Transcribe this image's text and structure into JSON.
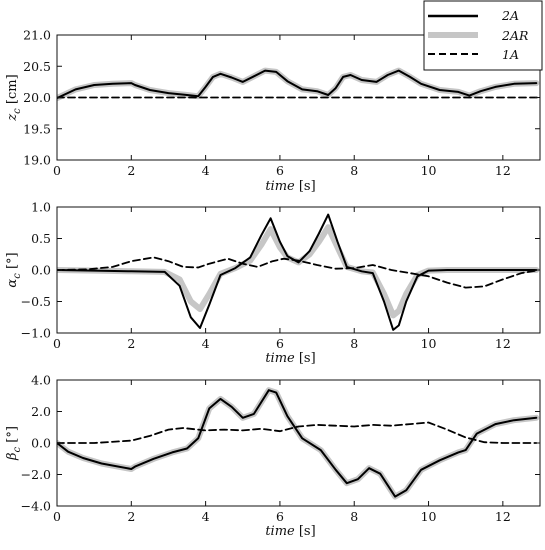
{
  "legend": {
    "entries": [
      {
        "label": "2A",
        "style": "solid-black"
      },
      {
        "label": "2AR",
        "style": "thick-gray"
      },
      {
        "label": "1A",
        "style": "dashed-black"
      }
    ],
    "placement": "top-right"
  },
  "colors": {
    "black": "#000000",
    "gray": "#c6c6c6"
  },
  "chart_data": [
    {
      "type": "line",
      "xlabel": "time [s]",
      "ylabel": "z_c [cm]",
      "xlim": [
        0,
        13
      ],
      "ylim": [
        19.0,
        21.0
      ],
      "xticks": [
        "0",
        "2",
        "4",
        "6",
        "8",
        "10",
        "12"
      ],
      "yticks": [
        "19.0",
        "19.5",
        "20.0",
        "20.5",
        "21.0"
      ],
      "grid": false,
      "series": [
        {
          "name": "2A",
          "x": [
            0,
            0.5,
            1,
            1.5,
            2,
            2.1,
            2.5,
            3,
            3.5,
            3.8,
            4,
            4.2,
            4.4,
            4.7,
            5,
            5.3,
            5.6,
            5.9,
            6.2,
            6.6,
            7,
            7.3,
            7.5,
            7.7,
            7.9,
            8.2,
            8.6,
            8.9,
            9.2,
            9.5,
            9.8,
            10.3,
            10.8,
            11.1,
            11.4,
            11.8,
            12.3,
            12.9
          ],
          "y": [
            19.99,
            20.13,
            20.2,
            20.22,
            20.23,
            20.2,
            20.12,
            20.07,
            20.04,
            20.02,
            20.17,
            20.33,
            20.38,
            20.32,
            20.25,
            20.34,
            20.43,
            20.41,
            20.26,
            20.13,
            20.1,
            20.04,
            20.15,
            20.33,
            20.36,
            20.28,
            20.25,
            20.36,
            20.43,
            20.33,
            20.22,
            20.12,
            20.09,
            20.03,
            20.1,
            20.17,
            20.22,
            20.23
          ]
        },
        {
          "name": "2AR",
          "x": [
            0,
            0.5,
            1,
            1.5,
            2,
            2.1,
            2.5,
            3,
            3.5,
            3.8,
            4,
            4.2,
            4.4,
            4.7,
            5,
            5.3,
            5.6,
            5.9,
            6.2,
            6.6,
            7,
            7.3,
            7.5,
            7.7,
            7.9,
            8.2,
            8.6,
            8.9,
            9.2,
            9.5,
            9.8,
            10.3,
            10.8,
            11.1,
            11.4,
            11.8,
            12.3,
            12.9
          ],
          "y": [
            19.99,
            20.13,
            20.2,
            20.22,
            20.23,
            20.2,
            20.12,
            20.07,
            20.04,
            20.02,
            20.17,
            20.33,
            20.38,
            20.32,
            20.25,
            20.34,
            20.43,
            20.41,
            20.26,
            20.13,
            20.1,
            20.04,
            20.15,
            20.33,
            20.36,
            20.28,
            20.25,
            20.36,
            20.43,
            20.33,
            20.22,
            20.12,
            20.09,
            20.03,
            20.1,
            20.17,
            20.22,
            20.23
          ]
        },
        {
          "name": "1A",
          "x": [
            0,
            13
          ],
          "y": [
            20.0,
            20.0
          ]
        }
      ]
    },
    {
      "type": "line",
      "xlabel": "time [s]",
      "ylabel": "α_c [°]",
      "xlim": [
        0,
        13
      ],
      "ylim": [
        -1.0,
        1.0
      ],
      "xticks": [
        "0",
        "2",
        "4",
        "6",
        "8",
        "10",
        "12"
      ],
      "yticks": [
        "−1.0",
        "−0.5",
        "0.0",
        "0.5",
        "1.0"
      ],
      "grid": false,
      "series": [
        {
          "name": "2A",
          "x": [
            0,
            1,
            2,
            2.9,
            3.3,
            3.6,
            3.85,
            4.1,
            4.4,
            4.8,
            5.2,
            5.5,
            5.75,
            6,
            6.2,
            6.5,
            6.8,
            7.05,
            7.3,
            7.55,
            7.8,
            8.2,
            8.5,
            8.8,
            9.05,
            9.2,
            9.4,
            9.7,
            10,
            10.5,
            11,
            12,
            12.9
          ],
          "y": [
            0,
            -0.01,
            -0.02,
            -0.03,
            -0.25,
            -0.75,
            -0.92,
            -0.55,
            -0.08,
            0.03,
            0.2,
            0.55,
            0.82,
            0.45,
            0.22,
            0.12,
            0.3,
            0.58,
            0.88,
            0.45,
            0.05,
            -0.02,
            -0.05,
            -0.5,
            -0.95,
            -0.88,
            -0.5,
            -0.1,
            -0.01,
            0,
            0,
            0,
            0
          ]
        },
        {
          "name": "2AR",
          "x": [
            0,
            1,
            2,
            2.9,
            3.3,
            3.6,
            3.85,
            4.1,
            4.4,
            4.8,
            5.2,
            5.5,
            5.75,
            6,
            6.2,
            6.5,
            6.8,
            7.05,
            7.3,
            7.55,
            7.8,
            8.2,
            8.5,
            8.8,
            9.05,
            9.2,
            9.4,
            9.7,
            10,
            10.5,
            11,
            12,
            12.9
          ],
          "y": [
            0,
            -0.01,
            -0.02,
            -0.03,
            -0.15,
            -0.5,
            -0.62,
            -0.38,
            -0.06,
            0.03,
            0.15,
            0.4,
            0.65,
            0.36,
            0.2,
            0.12,
            0.25,
            0.45,
            0.68,
            0.36,
            0.05,
            -0.02,
            -0.04,
            -0.38,
            -0.72,
            -0.65,
            -0.38,
            -0.08,
            -0.01,
            0,
            0,
            0,
            0
          ]
        },
        {
          "name": "1A",
          "x": [
            0,
            0.8,
            1.5,
            2,
            2.6,
            3,
            3.4,
            3.8,
            4.1,
            4.6,
            5.0,
            5.4,
            5.8,
            6.1,
            6.5,
            7,
            7.5,
            8,
            8.5,
            9,
            9.5,
            10,
            10.5,
            11,
            11.5,
            12,
            12.5,
            12.9
          ],
          "y": [
            0,
            0.01,
            0.05,
            0.14,
            0.2,
            0.14,
            0.05,
            0.04,
            0.1,
            0.18,
            0.1,
            0.05,
            0.14,
            0.18,
            0.15,
            0.08,
            0.02,
            0.03,
            0.08,
            0.0,
            -0.05,
            -0.1,
            -0.2,
            -0.28,
            -0.26,
            -0.15,
            -0.05,
            -0.01
          ]
        }
      ]
    },
    {
      "type": "line",
      "xlabel": "time [s]",
      "ylabel": "β_c [°]",
      "xlim": [
        0,
        13
      ],
      "ylim": [
        -4.0,
        4.0
      ],
      "xticks": [
        "0",
        "2",
        "4",
        "6",
        "8",
        "10",
        "12"
      ],
      "yticks": [
        "−4.0",
        "−2.0",
        "0.0",
        "2.0",
        "4.0"
      ],
      "grid": false,
      "series": [
        {
          "name": "2A",
          "x": [
            0,
            0.3,
            0.7,
            1.2,
            2,
            2.1,
            2.6,
            3.1,
            3.5,
            3.8,
            4.1,
            4.4,
            4.7,
            5,
            5.3,
            5.7,
            5.9,
            6.2,
            6.6,
            7.1,
            7.5,
            7.8,
            8.1,
            8.4,
            8.7,
            9.1,
            9.4,
            9.8,
            10.3,
            10.8,
            11,
            11.3,
            11.8,
            12.3,
            12.9
          ],
          "y": [
            0,
            -0.55,
            -0.95,
            -1.3,
            -1.65,
            -1.5,
            -1.0,
            -0.6,
            -0.35,
            0.3,
            2.2,
            2.8,
            2.3,
            1.6,
            1.85,
            3.35,
            3.2,
            1.7,
            0.3,
            -0.45,
            -1.7,
            -2.55,
            -2.3,
            -1.6,
            -1.95,
            -3.4,
            -3.0,
            -1.7,
            -1.1,
            -0.6,
            -0.45,
            0.6,
            1.2,
            1.45,
            1.6
          ]
        },
        {
          "name": "2AR",
          "x": [
            0,
            0.3,
            0.7,
            1.2,
            2,
            2.1,
            2.6,
            3.1,
            3.5,
            3.8,
            4.1,
            4.4,
            4.7,
            5,
            5.3,
            5.7,
            5.9,
            6.2,
            6.6,
            7.1,
            7.5,
            7.8,
            8.1,
            8.4,
            8.7,
            9.1,
            9.4,
            9.8,
            10.3,
            10.8,
            11,
            11.3,
            11.8,
            12.3,
            12.9
          ],
          "y": [
            0,
            -0.55,
            -0.95,
            -1.3,
            -1.65,
            -1.5,
            -1.0,
            -0.6,
            -0.35,
            0.3,
            2.2,
            2.8,
            2.3,
            1.6,
            1.85,
            3.35,
            3.2,
            1.7,
            0.3,
            -0.45,
            -1.7,
            -2.55,
            -2.3,
            -1.6,
            -1.95,
            -3.4,
            -3.0,
            -1.7,
            -1.1,
            -0.6,
            -0.45,
            0.6,
            1.2,
            1.45,
            1.6
          ]
        },
        {
          "name": "1A",
          "x": [
            0,
            1,
            2,
            2.5,
            3,
            3.4,
            4,
            4.5,
            5,
            5.5,
            6,
            6.5,
            7,
            7.5,
            8,
            8.5,
            9,
            9.5,
            10,
            10.5,
            11,
            11.5,
            12,
            12.9
          ],
          "y": [
            0,
            0,
            0.15,
            0.45,
            0.85,
            0.95,
            0.8,
            0.85,
            0.8,
            0.9,
            0.75,
            1.05,
            1.15,
            1.1,
            1.05,
            1.15,
            1.1,
            1.2,
            1.3,
            0.85,
            0.35,
            0.05,
            0,
            0
          ]
        }
      ]
    }
  ]
}
